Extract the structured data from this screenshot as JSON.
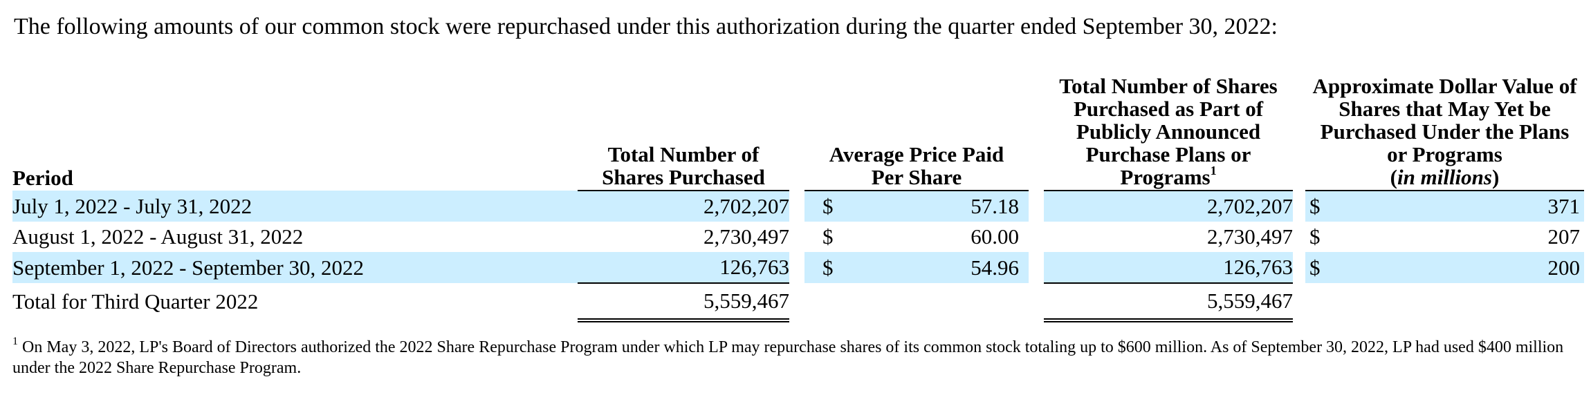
{
  "intro": "The following amounts of our common stock were repurchased under this authorization during the quarter ended September 30, 2022:",
  "headers": {
    "period": "Period",
    "total_shares": "Total Number of Shares Purchased",
    "avg_price": "Average Price Paid Per Share",
    "plans_shares": "Total Number of Shares Purchased as Part of Publicly Announced Purchase Plans or Programs",
    "plans_shares_note": "1",
    "dollar_value": "Approximate Dollar Value of Shares that May Yet be Purchased Under the Plans or Programs",
    "dollar_value_unit": "in millions"
  },
  "rows": [
    {
      "period": "July 1, 2022 - July 31, 2022",
      "total_shares": "2,702,207",
      "price_currency": "$",
      "avg_price": "57.18",
      "plans_shares": "2,702,207",
      "value_currency": "$",
      "dollar_value": "371"
    },
    {
      "period": "August 1, 2022 - August 31, 2022",
      "total_shares": "2,730,497",
      "price_currency": "$",
      "avg_price": "60.00",
      "plans_shares": "2,730,497",
      "value_currency": "$",
      "dollar_value": "207"
    },
    {
      "period": "September 1, 2022 - September 30, 2022",
      "total_shares": "126,763",
      "price_currency": "$",
      "avg_price": "54.96",
      "plans_shares": "126,763",
      "value_currency": "$",
      "dollar_value": "200"
    }
  ],
  "total": {
    "label": "Total for Third Quarter 2022",
    "total_shares": "5,559,467",
    "plans_shares": "5,559,467"
  },
  "footnote": {
    "mark": "1",
    "text": "On May 3, 2022, LP's Board of Directors authorized the 2022 Share Repurchase Program under which LP may repurchase shares of its common stock totaling up to $600 million. As of September 30, 2022, LP had used $400 million under the 2022 Share Repurchase Program."
  },
  "colors": {
    "row_shading": "#cceeff"
  }
}
